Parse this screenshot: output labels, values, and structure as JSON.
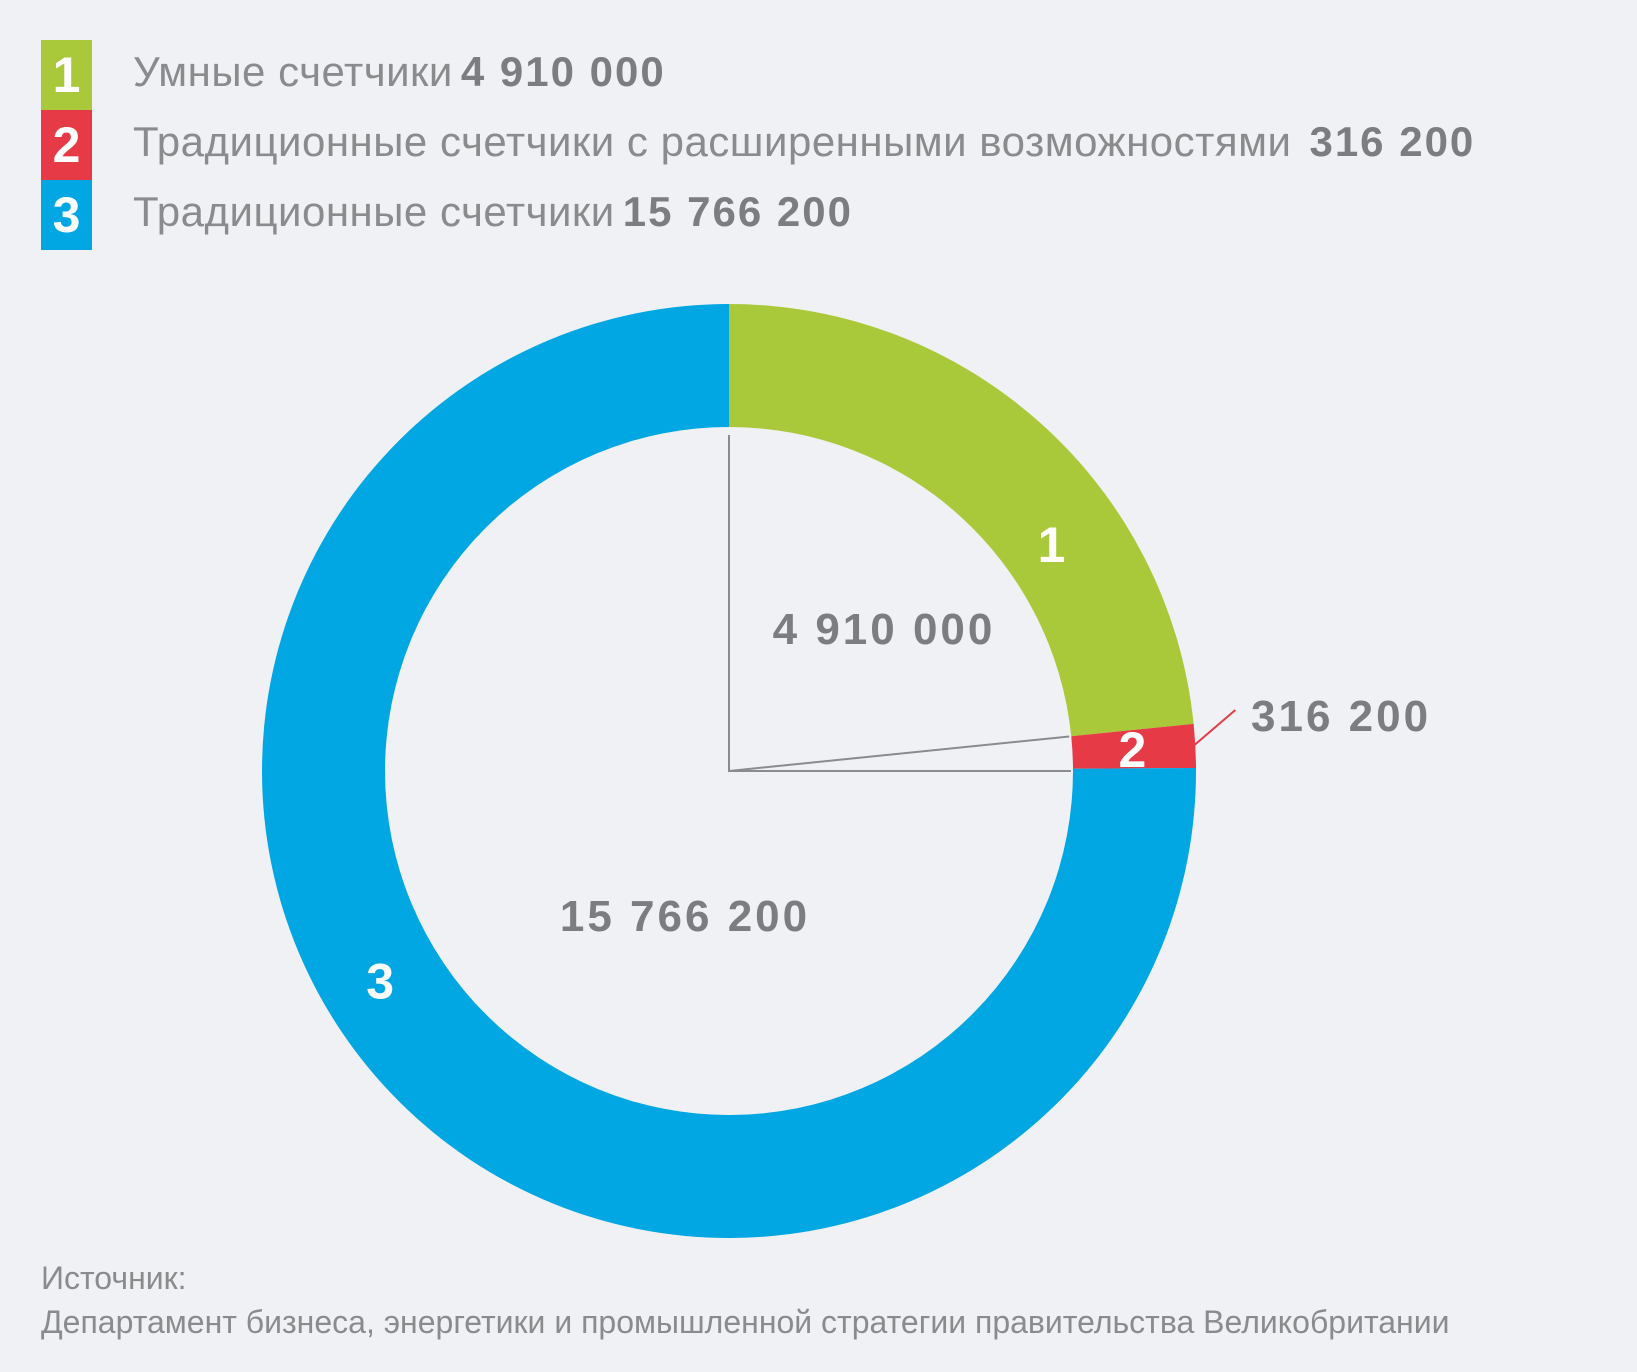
{
  "legend": [
    {
      "num": "1",
      "label": "Умные счетчики",
      "value": "4 910 000",
      "color": "#aac93a"
    },
    {
      "num": "2",
      "label": "Традиционные счетчики с расширенными возможностями",
      "value": "316 200",
      "color": "#e63a46"
    },
    {
      "num": "3",
      "label": "Традиционные счетчики",
      "value": "15 766 200",
      "color": "#00a7e3"
    }
  ],
  "chart_data": {
    "type": "pie",
    "variant": "donut",
    "categories": [
      "Умные счетчики",
      "Традиционные счетчики с расширенными возможностями",
      "Традиционные счетчики"
    ],
    "slice_labels": [
      "1",
      "2",
      "3"
    ],
    "values": [
      4910000,
      316200,
      15766200
    ],
    "value_labels": [
      "4 910 000",
      "316 200",
      "15 766 200"
    ],
    "colors": [
      "#aac93a",
      "#e63a46",
      "#00a7e3"
    ],
    "start": "top",
    "direction": "clockwise",
    "legend_position": "top-left"
  },
  "footer": {
    "source_label": "Источник:",
    "source_text": "Департамент бизнеса, энергетики и промышленной стратегии правительства Великобритании"
  }
}
